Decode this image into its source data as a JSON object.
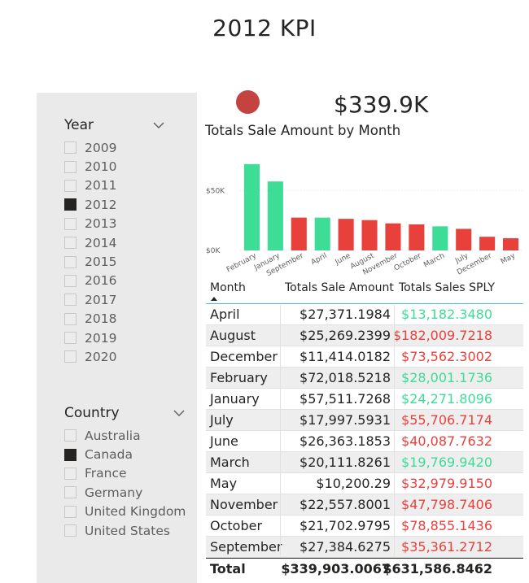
{
  "title": "2012 KPI",
  "kpi": {
    "value": "$339.9K",
    "indicator_color": "#c4423f"
  },
  "year_slicer": {
    "title": "Year",
    "items": [
      {
        "label": "2009",
        "checked": false
      },
      {
        "label": "2010",
        "checked": false
      },
      {
        "label": "2011",
        "checked": false
      },
      {
        "label": "2012",
        "checked": true
      },
      {
        "label": "2013",
        "checked": false
      },
      {
        "label": "2014",
        "checked": false
      },
      {
        "label": "2015",
        "checked": false
      },
      {
        "label": "2016",
        "checked": false
      },
      {
        "label": "2017",
        "checked": false
      },
      {
        "label": "2018",
        "checked": false
      },
      {
        "label": "2019",
        "checked": false
      },
      {
        "label": "2020",
        "checked": false
      }
    ]
  },
  "country_slicer": {
    "title": "Country",
    "items": [
      {
        "label": "Australia",
        "checked": false
      },
      {
        "label": "Canada",
        "checked": true
      },
      {
        "label": "France",
        "checked": false
      },
      {
        "label": "Germany",
        "checked": false
      },
      {
        "label": "United Kingdom",
        "checked": false
      },
      {
        "label": "United States",
        "checked": false
      }
    ]
  },
  "colors": {
    "good": "#3ddc97",
    "bad": "#e8413c",
    "accent": "#3bc9b3"
  },
  "chart_data": {
    "type": "bar",
    "title": "Totals Sale Amount by Month",
    "categories": [
      "February",
      "January",
      "September",
      "April",
      "June",
      "August",
      "November",
      "October",
      "March",
      "July",
      "December",
      "May"
    ],
    "values": [
      72018.5218,
      57511.7268,
      27384.6275,
      27371.1984,
      26363.1853,
      25269.2399,
      22557.8001,
      21702.9795,
      20111.8261,
      17997.5931,
      11414.0182,
      10200.29
    ],
    "status": [
      "good",
      "good",
      "bad",
      "good",
      "bad",
      "bad",
      "bad",
      "bad",
      "good",
      "bad",
      "bad",
      "bad"
    ],
    "y_ticks": [
      {
        "value": 0,
        "label": "$0K"
      },
      {
        "value": 50000,
        "label": "$50K"
      }
    ],
    "ylim": [
      0,
      80000
    ],
    "grid": true
  },
  "table": {
    "headers": {
      "month": "Month",
      "sales": "Totals Sale Amount",
      "sply": "Totals Sales SPLY"
    },
    "rows": [
      {
        "month": "April",
        "sales": "$27,371.1984",
        "sply": "$13,182.3480",
        "status": "good"
      },
      {
        "month": "August",
        "sales": "$25,269.2399",
        "sply": "$182,009.7218",
        "status": "bad"
      },
      {
        "month": "December",
        "sales": "$11,414.0182",
        "sply": "$73,562.3002",
        "status": "bad"
      },
      {
        "month": "February",
        "sales": "$72,018.5218",
        "sply": "$28,001.1736",
        "status": "good"
      },
      {
        "month": "January",
        "sales": "$57,511.7268",
        "sply": "$24,271.8096",
        "status": "good"
      },
      {
        "month": "July",
        "sales": "$17,997.5931",
        "sply": "$55,706.7174",
        "status": "bad"
      },
      {
        "month": "June",
        "sales": "$26,363.1853",
        "sply": "$40,087.7632",
        "status": "bad"
      },
      {
        "month": "March",
        "sales": "$20,111.8261",
        "sply": "$19,769.9420",
        "status": "good"
      },
      {
        "month": "May",
        "sales": "$10,200.29",
        "sply": "$32,979.9150",
        "status": "bad"
      },
      {
        "month": "November",
        "sales": "$22,557.8001",
        "sply": "$47,798.7406",
        "status": "bad"
      },
      {
        "month": "October",
        "sales": "$21,702.9795",
        "sply": "$78,855.1436",
        "status": "bad"
      },
      {
        "month": "September",
        "sales": "$27,384.6275",
        "sply": "$35,361.2712",
        "status": "bad"
      }
    ],
    "total": {
      "label": "Total",
      "sales": "$339,903.0067",
      "sply": "$631,586.8462"
    }
  }
}
